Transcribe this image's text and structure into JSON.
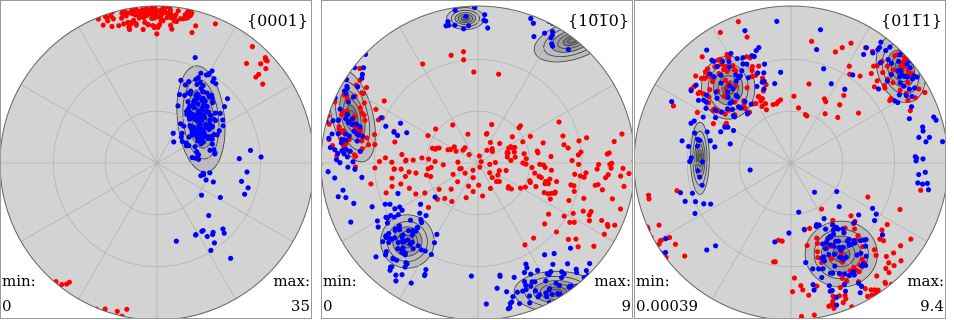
{
  "colors": {
    "background_fill": "#d3d3d3",
    "contour_fill_low": "#bdbdbd",
    "contour_fill_mid": "#9e9e9e",
    "contour_fill_high": "#7e7e7e",
    "contour_line": "#3c3c3c",
    "series_red": "#ff0000",
    "series_blue": "#0000ff",
    "grid": "#b4b4b4"
  },
  "chart_data": [
    {
      "type": "scatter",
      "subtype": "pole-figure",
      "title": "{0001}",
      "min_label": "min:",
      "min_value": "0",
      "max_label": "max:",
      "max_value": "35",
      "xlim": [
        -1,
        1
      ],
      "ylim": [
        -1,
        1
      ],
      "grid": true,
      "contours": [
        [
          0.28,
          0.28,
          0.15,
          0.34,
          0.1
        ]
      ],
      "series": [
        {
          "color": "red",
          "clusters": [
            [
              -0.05,
              0.95,
              0.18,
              0.05,
              160
            ],
            [
              0.65,
              0.58,
              0.04,
              0.12,
              12
            ],
            [
              -0.45,
              -0.98,
              0.12,
              0.03,
              28
            ],
            [
              -0.65,
              -0.78,
              0.05,
              0.03,
              5
            ]
          ]
        },
        {
          "color": "blue",
          "clusters": [
            [
              0.28,
              0.3,
              0.07,
              0.13,
              160
            ],
            [
              0.3,
              0.0,
              0.05,
              0.15,
              14
            ],
            [
              0.32,
              -0.42,
              0.1,
              0.07,
              14
            ],
            [
              0.6,
              -0.05,
              0.05,
              0.1,
              6
            ]
          ]
        }
      ]
    },
    {
      "type": "scatter",
      "subtype": "pole-figure",
      "title": "{10̅1̅0}",
      "min_label": "min:",
      "min_value": "0",
      "max_label": "max:",
      "max_value": "9",
      "xlim": [
        -1,
        1
      ],
      "ylim": [
        -1,
        1
      ],
      "grid": true,
      "contours": [
        [
          -0.8,
          0.3,
          0.13,
          0.3,
          0.25
        ],
        [
          -0.45,
          -0.5,
          0.17,
          0.17,
          -0.5
        ],
        [
          0.5,
          -0.82,
          0.27,
          0.13,
          0
        ],
        [
          0.6,
          0.78,
          0.25,
          0.12,
          0.3
        ],
        [
          -0.08,
          0.92,
          0.12,
          0.07,
          0
        ]
      ],
      "series": [
        {
          "color": "red",
          "clusters": [
            [
              -0.8,
              0.3,
              0.1,
              0.13,
              55
            ],
            [
              0.05,
              0.0,
              0.5,
              0.12,
              160
            ],
            [
              0.5,
              -0.2,
              0.2,
              0.17,
              45
            ],
            [
              -0.15,
              0.65,
              0.12,
              0.06,
              6
            ],
            [
              0.85,
              -0.35,
              0.08,
              0.12,
              10
            ]
          ]
        },
        {
          "color": "blue",
          "clusters": [
            [
              -0.83,
              0.28,
              0.08,
              0.28,
              80
            ],
            [
              -0.48,
              -0.5,
              0.1,
              0.13,
              85
            ],
            [
              0.45,
              -0.82,
              0.2,
              0.09,
              95
            ],
            [
              0.5,
              0.82,
              0.17,
              0.07,
              22
            ],
            [
              -0.1,
              0.9,
              0.08,
              0.06,
              14
            ],
            [
              -0.55,
              0.18,
              0.07,
              0.07,
              6
            ]
          ]
        }
      ]
    },
    {
      "type": "scatter",
      "subtype": "pole-figure",
      "title": "{011̅1}",
      "min_label": "min:",
      "min_value": "0.00039",
      "max_label": "max:",
      "max_value": "9.4",
      "xlim": [
        -1,
        1
      ],
      "ylim": [
        -1,
        1
      ],
      "grid": true,
      "contours": [
        [
          -0.4,
          0.48,
          0.17,
          0.2,
          0
        ],
        [
          0.7,
          0.6,
          0.15,
          0.22,
          0.3
        ],
        [
          0.32,
          -0.58,
          0.23,
          0.21,
          0
        ],
        [
          -0.58,
          0.03,
          0.06,
          0.23,
          0
        ],
        [
          -0.95,
          -0.6,
          0.05,
          0.22,
          0.4
        ]
      ],
      "series": [
        {
          "color": "red",
          "clusters": [
            [
              -0.4,
              0.5,
              0.12,
              0.14,
              70
            ],
            [
              0.72,
              0.62,
              0.1,
              0.12,
              55
            ],
            [
              0.35,
              -0.65,
              0.22,
              0.22,
              120
            ],
            [
              -0.85,
              -0.62,
              0.08,
              0.22,
              35
            ],
            [
              0.0,
              0.38,
              0.22,
              0.05,
              25
            ],
            [
              0.4,
              0.55,
              0.15,
              0.18,
              12
            ]
          ]
        },
        {
          "color": "blue",
          "clusters": [
            [
              -0.42,
              0.42,
              0.1,
              0.16,
              65
            ],
            [
              0.72,
              0.6,
              0.1,
              0.12,
              55
            ],
            [
              0.3,
              -0.55,
              0.13,
              0.15,
              90
            ],
            [
              -0.6,
              0.0,
              0.06,
              0.25,
              25
            ],
            [
              0.88,
              0.05,
              0.06,
              0.15,
              18
            ],
            [
              -0.2,
              0.6,
              0.03,
              0.07,
              8
            ],
            [
              -0.85,
              -0.7,
              0.06,
              0.13,
              18
            ],
            [
              0.1,
              0.7,
              0.2,
              0.12,
              10
            ]
          ]
        }
      ]
    }
  ]
}
